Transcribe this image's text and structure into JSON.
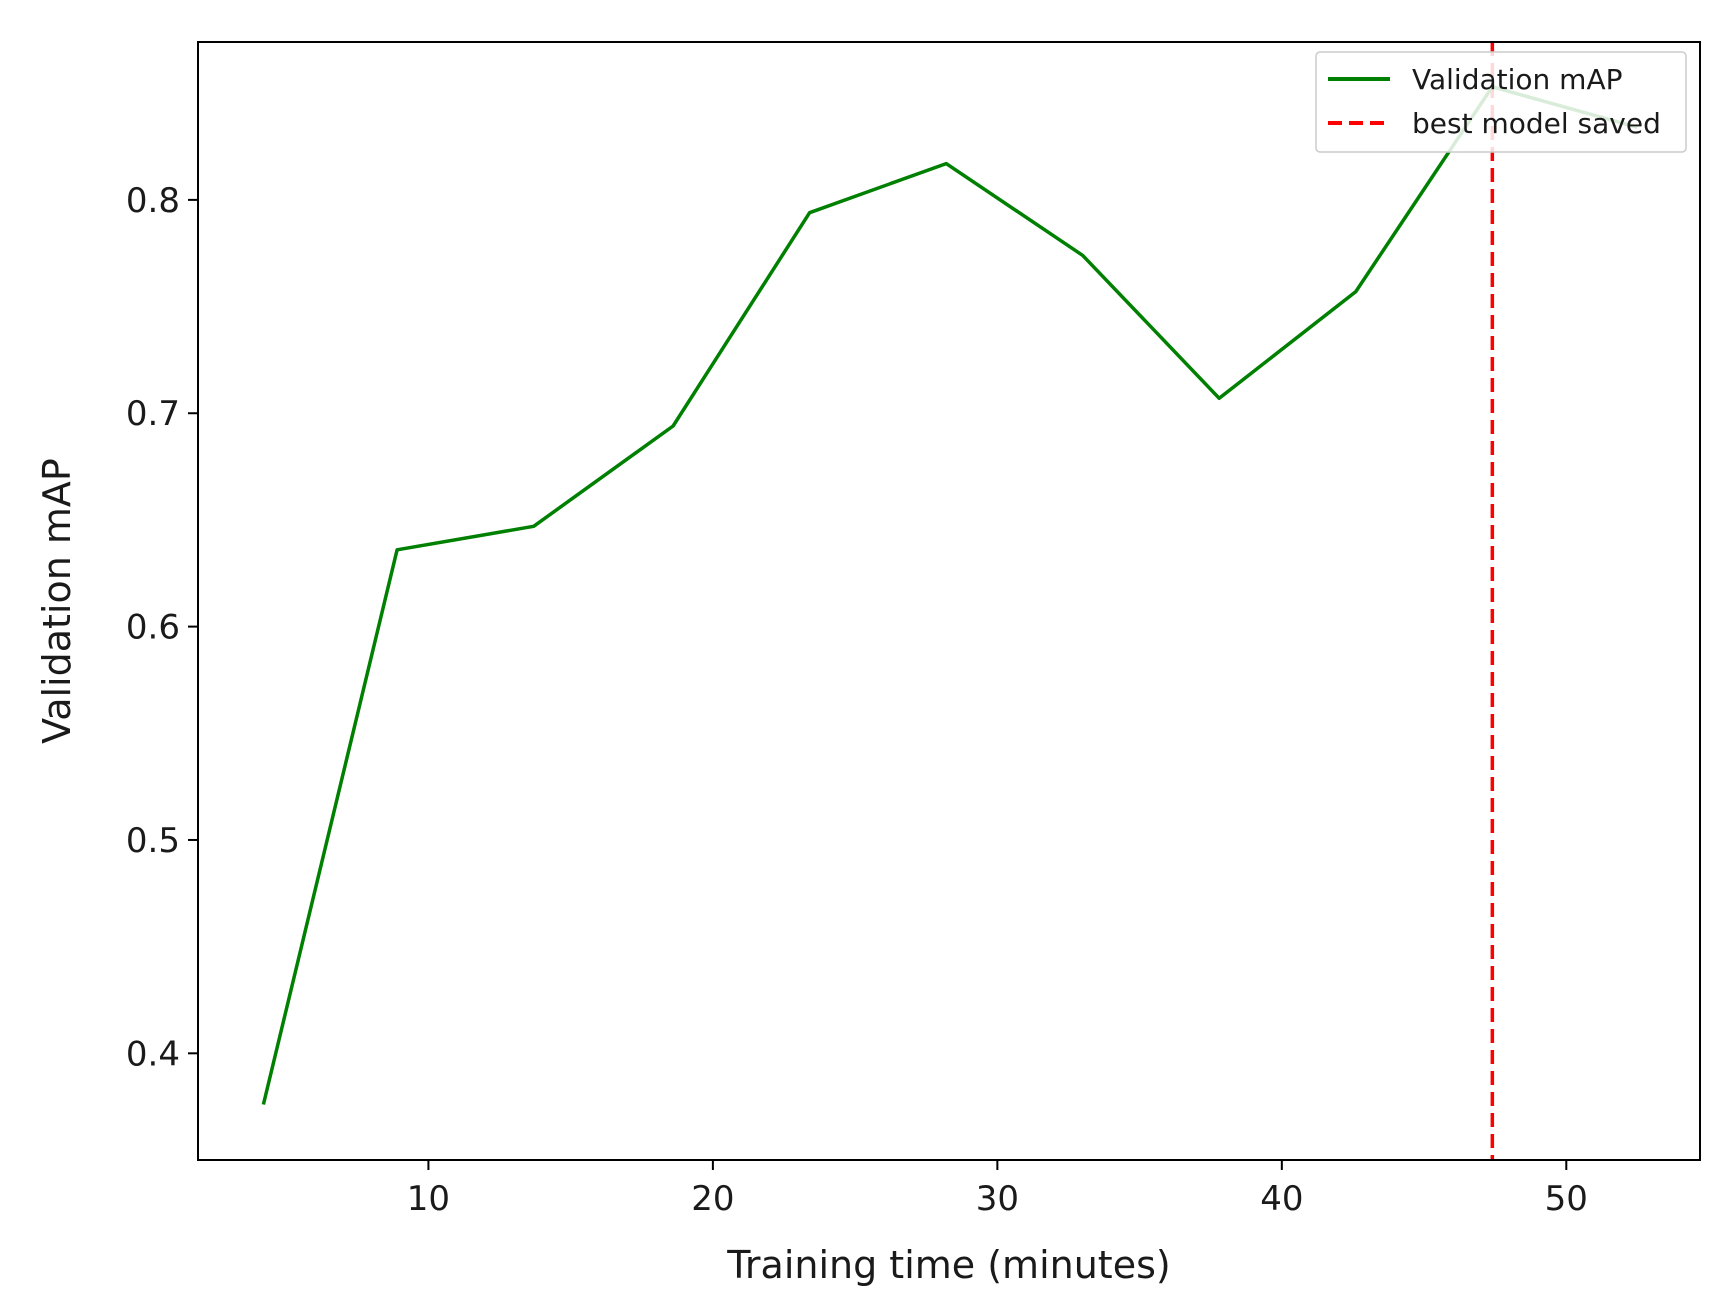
{
  "chart_data": {
    "type": "line",
    "xlabel": "Training time (minutes)",
    "ylabel": "Validation mAP",
    "xlim": [
      1.9,
      54.7
    ],
    "ylim": [
      0.35,
      0.874
    ],
    "xticks": [
      10,
      20,
      30,
      40,
      50
    ],
    "yticks": [
      0.4,
      0.5,
      0.6,
      0.7,
      0.8
    ],
    "xtick_labels": [
      "10",
      "20",
      "30",
      "40",
      "50"
    ],
    "ytick_labels": [
      "0.4",
      "0.5",
      "0.6",
      "0.7",
      "0.8"
    ],
    "grid": false,
    "legend_position": "top-right",
    "series": [
      {
        "name": "Validation mAP",
        "color": "#008000",
        "style": "solid",
        "x": [
          4.2,
          8.9,
          13.7,
          18.6,
          23.4,
          28.2,
          33.0,
          37.8,
          42.6,
          47.4,
          52.5
        ],
        "y": [
          0.376,
          0.636,
          0.647,
          0.694,
          0.794,
          0.817,
          0.774,
          0.707,
          0.757,
          0.853,
          0.834
        ]
      }
    ],
    "vlines": [
      {
        "name": "best model saved",
        "x": 47.4,
        "color": "#ff0000",
        "style": "dashed"
      }
    ]
  }
}
